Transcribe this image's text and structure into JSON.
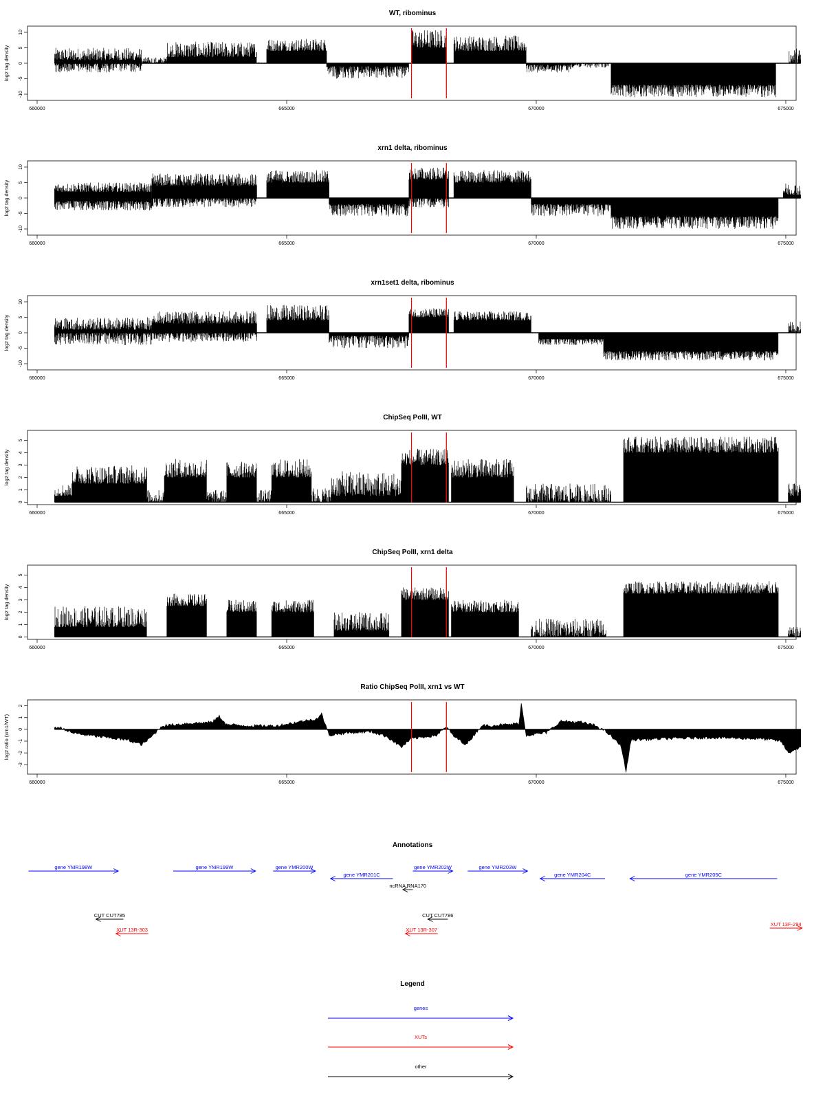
{
  "chart_data": [
    {
      "type": "bar",
      "title": "WT, ribominus",
      "ylabel": "log2 tag density",
      "xlim": [
        660000,
        675400
      ],
      "ylim": [
        -12,
        12
      ],
      "x_ticks": [
        660000,
        665000,
        670000,
        675000
      ],
      "y_ticks": [
        10,
        5,
        0,
        -5,
        -10
      ],
      "markers": [
        667500,
        668200
      ],
      "regions": [
        {
          "start": 660350,
          "end": 662100,
          "sign": 1,
          "lo": 1,
          "hi": 5
        },
        {
          "start": 660350,
          "end": 662100,
          "sign": -1,
          "lo": 0,
          "hi": 3
        },
        {
          "start": 662100,
          "end": 662600,
          "sign": 1,
          "lo": 0,
          "hi": 2
        },
        {
          "start": 662600,
          "end": 664400,
          "sign": 1,
          "lo": 2,
          "hi": 7
        },
        {
          "start": 664400,
          "end": 664600,
          "sign": 1,
          "lo": 0,
          "hi": 0.4
        },
        {
          "start": 664600,
          "end": 665800,
          "sign": 1,
          "lo": 4,
          "hi": 8
        },
        {
          "start": 665800,
          "end": 667450,
          "sign": -1,
          "lo": 1,
          "hi": 5
        },
        {
          "start": 667500,
          "end": 668200,
          "sign": 1,
          "lo": 5,
          "hi": 11
        },
        {
          "start": 668350,
          "end": 669800,
          "sign": 1,
          "lo": 4,
          "hi": 9
        },
        {
          "start": 669800,
          "end": 670700,
          "sign": -1,
          "lo": 0.5,
          "hi": 3
        },
        {
          "start": 670700,
          "end": 671500,
          "sign": -1,
          "lo": 0,
          "hi": 1.5
        },
        {
          "start": 671500,
          "end": 674800,
          "sign": -1,
          "lo": 7,
          "hi": 11
        },
        {
          "start": 675050,
          "end": 675300,
          "sign": 1,
          "lo": 0,
          "hi": 5
        }
      ]
    },
    {
      "type": "bar",
      "title": "xrn1 delta, ribominus",
      "ylabel": "log2 tag density",
      "xlim": [
        660000,
        675400
      ],
      "ylim": [
        -12,
        12
      ],
      "x_ticks": [
        660000,
        665000,
        670000,
        675000
      ],
      "y_ticks": [
        10,
        5,
        0,
        -5,
        -10
      ],
      "markers": [
        667500,
        668200
      ],
      "regions": [
        {
          "start": 660350,
          "end": 662300,
          "sign": 1,
          "lo": 2,
          "hi": 5
        },
        {
          "start": 660350,
          "end": 662300,
          "sign": -1,
          "lo": 1,
          "hi": 4
        },
        {
          "start": 662300,
          "end": 664400,
          "sign": 1,
          "lo": 4,
          "hi": 8
        },
        {
          "start": 662300,
          "end": 664400,
          "sign": -1,
          "lo": 0,
          "hi": 3
        },
        {
          "start": 664600,
          "end": 665850,
          "sign": 1,
          "lo": 5,
          "hi": 9
        },
        {
          "start": 665850,
          "end": 667450,
          "sign": -1,
          "lo": 2,
          "hi": 6
        },
        {
          "start": 667450,
          "end": 668250,
          "sign": 1,
          "lo": 6,
          "hi": 10
        },
        {
          "start": 667450,
          "end": 668250,
          "sign": -1,
          "lo": 0,
          "hi": 3
        },
        {
          "start": 668350,
          "end": 669900,
          "sign": 1,
          "lo": 5,
          "hi": 9
        },
        {
          "start": 669900,
          "end": 671500,
          "sign": -1,
          "lo": 2,
          "hi": 6
        },
        {
          "start": 671500,
          "end": 674850,
          "sign": -1,
          "lo": 6,
          "hi": 10
        },
        {
          "start": 674950,
          "end": 675300,
          "sign": 1,
          "lo": 1,
          "hi": 5
        }
      ]
    },
    {
      "type": "bar",
      "title": "xrn1set1 delta, ribominus",
      "ylabel": "log2 tag density",
      "xlim": [
        660000,
        675400
      ],
      "ylim": [
        -12,
        12
      ],
      "x_ticks": [
        660000,
        665000,
        670000,
        675000
      ],
      "y_ticks": [
        10,
        5,
        0,
        -5,
        -10
      ],
      "markers": [
        667500,
        668200
      ],
      "regions": [
        {
          "start": 660350,
          "end": 662300,
          "sign": 1,
          "lo": 1,
          "hi": 5
        },
        {
          "start": 660350,
          "end": 662300,
          "sign": -1,
          "lo": 0,
          "hi": 4
        },
        {
          "start": 662300,
          "end": 664400,
          "sign": 1,
          "lo": 3,
          "hi": 7
        },
        {
          "start": 662300,
          "end": 664400,
          "sign": -1,
          "lo": 0,
          "hi": 3
        },
        {
          "start": 664600,
          "end": 665850,
          "sign": 1,
          "lo": 4,
          "hi": 9
        },
        {
          "start": 665850,
          "end": 667450,
          "sign": -1,
          "lo": 1,
          "hi": 5
        },
        {
          "start": 667450,
          "end": 668250,
          "sign": 1,
          "lo": 5,
          "hi": 8
        },
        {
          "start": 668350,
          "end": 669900,
          "sign": 1,
          "lo": 4,
          "hi": 7
        },
        {
          "start": 670050,
          "end": 671350,
          "sign": -1,
          "lo": 2,
          "hi": 4
        },
        {
          "start": 671350,
          "end": 674850,
          "sign": -1,
          "lo": 6,
          "hi": 9
        },
        {
          "start": 675050,
          "end": 675300,
          "sign": 1,
          "lo": 0,
          "hi": 4
        }
      ]
    },
    {
      "type": "bar",
      "title": "ChipSeq PolII, WT",
      "ylabel": "log2 tag density",
      "xlim": [
        660000,
        675400
      ],
      "ylim": [
        -0.2,
        5.8
      ],
      "x_ticks": [
        660000,
        665000,
        670000,
        675000
      ],
      "y_ticks": [
        5,
        4,
        3,
        2,
        1,
        0
      ],
      "markers": [
        667500,
        668200
      ],
      "regions": [
        {
          "start": 660350,
          "end": 660700,
          "sign": 1,
          "lo": 0.5,
          "hi": 1.5
        },
        {
          "start": 660700,
          "end": 662200,
          "sign": 1,
          "lo": 1.5,
          "hi": 3
        },
        {
          "start": 662200,
          "end": 662550,
          "sign": 1,
          "lo": 0,
          "hi": 1
        },
        {
          "start": 662550,
          "end": 663400,
          "sign": 1,
          "lo": 2,
          "hi": 3.5
        },
        {
          "start": 663400,
          "end": 663800,
          "sign": 1,
          "lo": 0,
          "hi": 1
        },
        {
          "start": 663800,
          "end": 664400,
          "sign": 1,
          "lo": 2,
          "hi": 3.3
        },
        {
          "start": 664400,
          "end": 664700,
          "sign": 1,
          "lo": 0,
          "hi": 1
        },
        {
          "start": 664700,
          "end": 665500,
          "sign": 1,
          "lo": 2,
          "hi": 3.5
        },
        {
          "start": 665500,
          "end": 665900,
          "sign": 1,
          "lo": 0,
          "hi": 1.2
        },
        {
          "start": 665900,
          "end": 667300,
          "sign": 1,
          "lo": 0.5,
          "hi": 2.5
        },
        {
          "start": 667300,
          "end": 668250,
          "sign": 1,
          "lo": 3,
          "hi": 4.3
        },
        {
          "start": 668300,
          "end": 669550,
          "sign": 1,
          "lo": 2,
          "hi": 3.5
        },
        {
          "start": 669800,
          "end": 671500,
          "sign": 1,
          "lo": 0,
          "hi": 1.5
        },
        {
          "start": 671750,
          "end": 674850,
          "sign": 1,
          "lo": 4,
          "hi": 5.3
        },
        {
          "start": 675050,
          "end": 675300,
          "sign": 1,
          "lo": 0.5,
          "hi": 1.5
        }
      ]
    },
    {
      "type": "bar",
      "title": "ChipSeq PolII, xrn1 delta",
      "ylabel": "log2 tag density",
      "xlim": [
        660000,
        675400
      ],
      "ylim": [
        -0.2,
        5.8
      ],
      "x_ticks": [
        660000,
        665000,
        670000,
        675000
      ],
      "y_ticks": [
        5,
        4,
        3,
        2,
        1,
        0
      ],
      "markers": [
        667500,
        668200
      ],
      "regions": [
        {
          "start": 660350,
          "end": 662200,
          "sign": 1,
          "lo": 0.8,
          "hi": 2.5
        },
        {
          "start": 662600,
          "end": 663400,
          "sign": 1,
          "lo": 2.5,
          "hi": 3.5
        },
        {
          "start": 663800,
          "end": 664400,
          "sign": 1,
          "lo": 2,
          "hi": 3
        },
        {
          "start": 664700,
          "end": 665550,
          "sign": 1,
          "lo": 2,
          "hi": 3
        },
        {
          "start": 665950,
          "end": 667050,
          "sign": 1,
          "lo": 0.5,
          "hi": 2
        },
        {
          "start": 667300,
          "end": 668250,
          "sign": 1,
          "lo": 3,
          "hi": 4
        },
        {
          "start": 668300,
          "end": 669650,
          "sign": 1,
          "lo": 2,
          "hi": 3
        },
        {
          "start": 669900,
          "end": 671400,
          "sign": 1,
          "lo": 0,
          "hi": 1.5
        },
        {
          "start": 671750,
          "end": 674850,
          "sign": 1,
          "lo": 3.5,
          "hi": 4.5
        },
        {
          "start": 675050,
          "end": 675300,
          "sign": 1,
          "lo": 0,
          "hi": 0.8
        }
      ]
    },
    {
      "type": "area",
      "title": "Ratio ChipSeq PolII, xrn1 vs WT",
      "ylabel": "log2 ratio (xrn1/WT)",
      "xlim": [
        660000,
        675400
      ],
      "ylim": [
        -3.8,
        2.5
      ],
      "x_ticks": [
        660000,
        665000,
        670000,
        675000
      ],
      "y_ticks": [
        2,
        1,
        0,
        -1,
        -2,
        -3
      ],
      "markers": [
        667500,
        668200
      ],
      "profile": [
        [
          660350,
          0.2
        ],
        [
          660500,
          0.1
        ],
        [
          660700,
          -0.3
        ],
        [
          661000,
          -0.5
        ],
        [
          661400,
          -0.7
        ],
        [
          661800,
          -0.9
        ],
        [
          662100,
          -1.3
        ],
        [
          662300,
          -0.6
        ],
        [
          662500,
          0.3
        ],
        [
          663000,
          0.5
        ],
        [
          663500,
          0.6
        ],
        [
          663650,
          1.1
        ],
        [
          663800,
          0.4
        ],
        [
          664300,
          0.3
        ],
        [
          664800,
          0.3
        ],
        [
          665200,
          0.6
        ],
        [
          665600,
          0.9
        ],
        [
          665700,
          1.3
        ],
        [
          665850,
          -0.5
        ],
        [
          666200,
          -0.3
        ],
        [
          666700,
          -0.2
        ],
        [
          667000,
          -0.6
        ],
        [
          667300,
          -1.5
        ],
        [
          667500,
          -0.8
        ],
        [
          668000,
          -0.5
        ],
        [
          668200,
          0.2
        ],
        [
          668350,
          -0.6
        ],
        [
          668600,
          -1.3
        ],
        [
          668900,
          0.3
        ],
        [
          669400,
          0.4
        ],
        [
          669650,
          0.5
        ],
        [
          669700,
          2.2
        ],
        [
          669800,
          -0.5
        ],
        [
          670200,
          -0.3
        ],
        [
          670500,
          0.7
        ],
        [
          670900,
          0.6
        ],
        [
          671200,
          0.3
        ],
        [
          671400,
          -0.2
        ],
        [
          671700,
          -1.4
        ],
        [
          671800,
          -3.6
        ],
        [
          671900,
          -0.9
        ],
        [
          672500,
          -0.8
        ],
        [
          673500,
          -0.7
        ],
        [
          674500,
          -0.8
        ],
        [
          674900,
          -1.0
        ],
        [
          675050,
          -2.0
        ],
        [
          675300,
          -1.5
        ]
      ]
    }
  ],
  "annotations": {
    "title": "Annotations",
    "items": [
      {
        "label": "gene YMR198W",
        "start": 659800,
        "end": 661600,
        "dir": "right",
        "color": "#0000ff",
        "row": 1
      },
      {
        "label": "gene YMR199W",
        "start": 662700,
        "end": 664350,
        "dir": "right",
        "color": "#0000ff",
        "row": 1
      },
      {
        "label": "gene YMR200W",
        "start": 664700,
        "end": 665550,
        "dir": "right",
        "color": "#0000ff",
        "row": 1
      },
      {
        "label": "gene YMR201C",
        "start": 665850,
        "end": 667100,
        "dir": "left",
        "color": "#0000ff",
        "row": 2
      },
      {
        "label": "gene YMR202W",
        "start": 667500,
        "end": 668300,
        "dir": "right",
        "color": "#0000ff",
        "row": 1
      },
      {
        "label": "gene YMR203W",
        "start": 668600,
        "end": 669800,
        "dir": "right",
        "color": "#0000ff",
        "row": 1
      },
      {
        "label": "gene YMR204C",
        "start": 670050,
        "end": 671350,
        "dir": "left",
        "color": "#0000ff",
        "row": 2
      },
      {
        "label": "gene YMR205C",
        "start": 671850,
        "end": 674800,
        "dir": "left",
        "color": "#0000ff",
        "row": 2
      },
      {
        "label": "ncRNA RNA170",
        "start": 667300,
        "end": 667500,
        "dir": "left",
        "color": "#000000",
        "row": 3
      },
      {
        "label": "CUT CUT785",
        "start": 661150,
        "end": 661700,
        "dir": "left",
        "color": "#000000",
        "row": 4
      },
      {
        "label": "CUT CUT786",
        "start": 667800,
        "end": 668200,
        "dir": "left",
        "color": "#000000",
        "row": 4
      },
      {
        "label": "XUT 13R-303",
        "start": 661550,
        "end": 662200,
        "dir": "left",
        "color": "#ff0000",
        "row": 5
      },
      {
        "label": "XUT 13R-307",
        "start": 667350,
        "end": 668000,
        "dir": "left",
        "color": "#ff0000",
        "row": 5
      },
      {
        "label": "XUT 13F-294",
        "start": 674650,
        "end": 675300,
        "dir": "right",
        "color": "#ff0000",
        "row": 4.7
      }
    ]
  },
  "legend": {
    "title": "Legend",
    "items": [
      {
        "label": "genes",
        "color": "#0000ff"
      },
      {
        "label": "XUTs",
        "color": "#ff0000"
      },
      {
        "label": "other",
        "color": "#000000"
      }
    ]
  }
}
